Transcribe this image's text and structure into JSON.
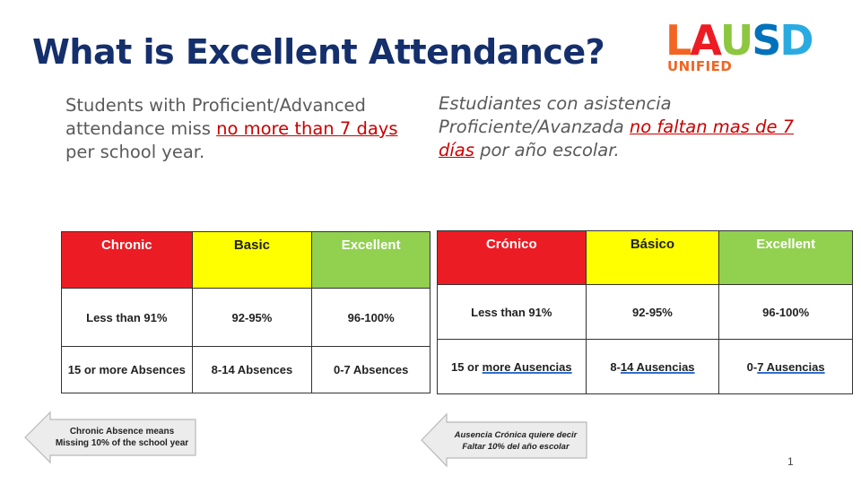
{
  "title": "What is Excellent Attendance?",
  "logo": {
    "letters": [
      {
        "ch": "L",
        "color": "#f26522"
      },
      {
        "ch": "A",
        "color": "#ed1c24"
      },
      {
        "ch": "U",
        "color": "#8dc63f"
      },
      {
        "ch": "S",
        "color": "#0072bc"
      },
      {
        "ch": "D",
        "color": "#29abe2"
      }
    ],
    "sub": "UNIFIED"
  },
  "english": {
    "before": "Students with Proficient/Advanced attendance miss ",
    "highlight": "no more than 7 days",
    "after": " per school year."
  },
  "spanish": {
    "before": "Estudiantes con asistencia Proficiente/Avanzada ",
    "highlight": "no faltan mas de 7 días",
    "after": " por año escolar."
  },
  "table_en": {
    "headers": [
      "Chronic",
      "Basic",
      "Excellent"
    ],
    "rows": [
      [
        "Less than 91%",
        "92-95%",
        "96-100%"
      ],
      [
        "15 or more Absences",
        "8-14 Absences",
        "0-7 Absences"
      ]
    ]
  },
  "table_es": {
    "headers": [
      "Crónico",
      "Básico",
      "Excellent"
    ],
    "rows": [
      [
        "Less than 91%",
        "92-95%",
        "96-100%"
      ]
    ],
    "row2": [
      {
        "pre": "15 or ",
        "u": "more  Ausencias"
      },
      {
        "pre": "8-",
        "u": "14  Ausencias"
      },
      {
        "pre": "0-",
        "u": "7  Ausencias"
      }
    ]
  },
  "callout_en": {
    "line1": "Chronic Absence means",
    "line2": "Missing 10% of the school year"
  },
  "callout_es": {
    "line1": "Ausencia Crónica quiere decir",
    "line2": "Faltar 10% del año escolar"
  },
  "page_number": "1"
}
